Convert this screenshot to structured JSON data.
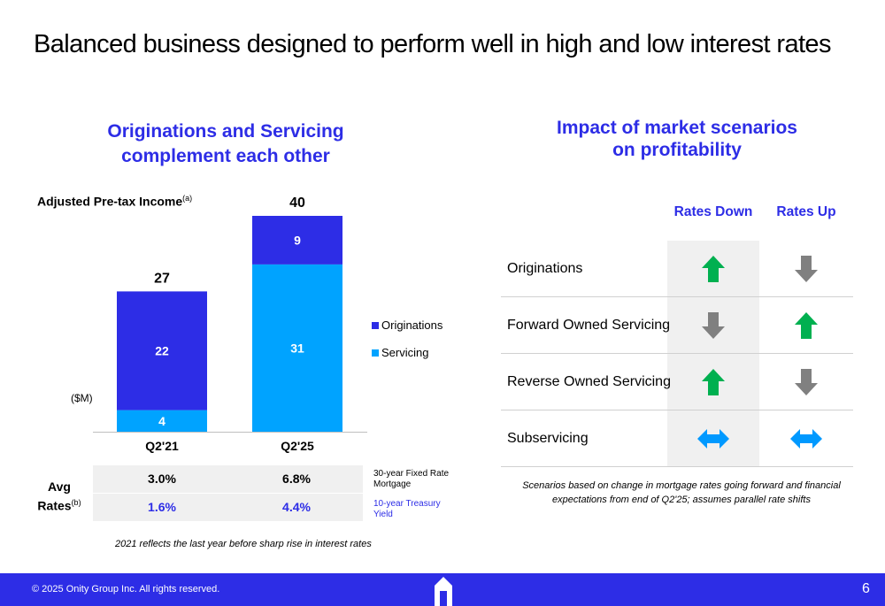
{
  "page": {
    "title": "Balanced business designed to perform well in high and low interest rates",
    "footer": "© 2025 Onity Group Inc. All rights reserved.",
    "page_number": "6"
  },
  "left": {
    "heading_line1": "Originations and Servicing",
    "heading_line2": "complement each other",
    "y_label": "Adjusted Pre-tax Income",
    "y_label_sup": "(a)",
    "unit": "($M)",
    "footnote": "2021 reflects the last year before sharp rise in interest rates"
  },
  "chart_data": {
    "type": "bar",
    "stacked": true,
    "categories": [
      "Q2'21",
      "Q2'25"
    ],
    "series": [
      {
        "name": "Servicing",
        "values": [
          4,
          31
        ],
        "color": "#00A3FF"
      },
      {
        "name": "Originations",
        "values": [
          22,
          9
        ],
        "color": "#2D2DE6"
      }
    ],
    "totals": [
      "27",
      "40"
    ],
    "ylim": [
      0,
      40
    ],
    "legend": [
      "Originations",
      "Servicing"
    ],
    "legend_position": "right"
  },
  "rates": {
    "label": "Avg Rates",
    "label_line1": "Avg",
    "label_line2": "Rates",
    "label_sup": "(b)",
    "rows": [
      {
        "values": [
          "3.0%",
          "6.8%"
        ],
        "note_line1": "30-year Fixed Rate",
        "note_line2": "Mortgage",
        "color": "#000000"
      },
      {
        "values": [
          "1.6%",
          "4.4%"
        ],
        "note_line1": "10-year Treasury",
        "note_line2": "Yield",
        "color": "#2D2DE6"
      }
    ]
  },
  "right": {
    "heading_line1": "Impact of market scenarios",
    "heading_line2": "on profitability",
    "columns": [
      "Rates Down",
      "Rates Up"
    ],
    "rows": [
      {
        "label": "Originations",
        "rates_down": "up-green",
        "rates_up": "down-gray"
      },
      {
        "label": "Forward Owned Servicing",
        "rates_down": "down-gray",
        "rates_up": "up-green"
      },
      {
        "label": "Reverse Owned Servicing",
        "rates_down": "up-green",
        "rates_up": "down-gray"
      },
      {
        "label": "Subservicing",
        "rates_down": "both-blue",
        "rates_up": "both-blue"
      }
    ],
    "footnote_line1": "Scenarios based on change in mortgage rates going forward and financial",
    "footnote_line2": "expectations from end of Q2'25; assumes parallel rate shifts"
  },
  "colors": {
    "brand_blue": "#2D2DE6",
    "servicing_blue": "#00A3FF",
    "arrow_green": "#00B050",
    "arrow_gray": "#808080",
    "arrow_blue": "#0099FF"
  }
}
